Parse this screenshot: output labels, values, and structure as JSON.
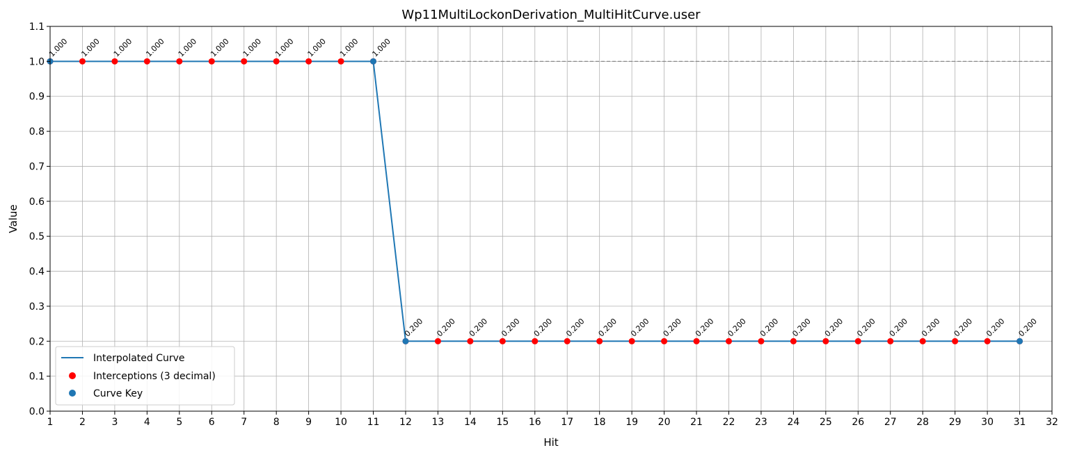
{
  "chart_data": {
    "type": "line",
    "title": "Wp11MultiLockonDerivation_MultiHitCurve.user",
    "xlabel": "Hit",
    "ylabel": "Value",
    "xlim": [
      1,
      32
    ],
    "ylim": [
      0.0,
      1.1
    ],
    "x_ticks": [
      "1",
      "2",
      "3",
      "4",
      "5",
      "6",
      "7",
      "8",
      "9",
      "10",
      "11",
      "12",
      "13",
      "14",
      "15",
      "16",
      "17",
      "18",
      "19",
      "20",
      "21",
      "22",
      "23",
      "24",
      "25",
      "26",
      "27",
      "28",
      "29",
      "30",
      "31",
      "32"
    ],
    "y_ticks": [
      "0.0",
      "0.1",
      "0.2",
      "0.3",
      "0.4",
      "0.5",
      "0.6",
      "0.7",
      "0.8",
      "0.9",
      "1.0",
      "1.1"
    ],
    "grid": true,
    "reference_line": {
      "y": 1.0,
      "style": "dashed",
      "color": "#888888"
    },
    "legend": {
      "position": "bottom-left",
      "entries": [
        {
          "label": "Interpolated Curve",
          "kind": "line",
          "color": "#1f77b4"
        },
        {
          "label": "Interceptions (3 decimal)",
          "kind": "marker",
          "color": "#ff0000"
        },
        {
          "label": "Curve Key",
          "kind": "marker",
          "color": "#1f77b4"
        }
      ]
    },
    "series": [
      {
        "name": "Interpolated Curve",
        "color": "#1f77b4",
        "x": [
          1,
          11,
          12,
          31
        ],
        "y": [
          1.0,
          1.0,
          0.2,
          0.2
        ]
      },
      {
        "name": "Interceptions (3 decimal)",
        "color": "#ff0000",
        "x": [
          1,
          2,
          3,
          4,
          5,
          6,
          7,
          8,
          9,
          10,
          11,
          12,
          13,
          14,
          15,
          16,
          17,
          18,
          19,
          20,
          21,
          22,
          23,
          24,
          25,
          26,
          27,
          28,
          29,
          30,
          31
        ],
        "y": [
          1.0,
          1.0,
          1.0,
          1.0,
          1.0,
          1.0,
          1.0,
          1.0,
          1.0,
          1.0,
          1.0,
          0.2,
          0.2,
          0.2,
          0.2,
          0.2,
          0.2,
          0.2,
          0.2,
          0.2,
          0.2,
          0.2,
          0.2,
          0.2,
          0.2,
          0.2,
          0.2,
          0.2,
          0.2,
          0.2,
          0.2
        ],
        "labels": [
          "1.000",
          "1.000",
          "1.000",
          "1.000",
          "1.000",
          "1.000",
          "1.000",
          "1.000",
          "1.000",
          "1.000",
          "1.000",
          "0.200",
          "0.200",
          "0.200",
          "0.200",
          "0.200",
          "0.200",
          "0.200",
          "0.200",
          "0.200",
          "0.200",
          "0.200",
          "0.200",
          "0.200",
          "0.200",
          "0.200",
          "0.200",
          "0.200",
          "0.200",
          "0.200",
          "0.200"
        ]
      },
      {
        "name": "Curve Key",
        "color": "#1f77b4",
        "x": [
          1,
          11,
          12,
          31
        ],
        "y": [
          1.0,
          1.0,
          0.2,
          0.2
        ]
      }
    ]
  }
}
